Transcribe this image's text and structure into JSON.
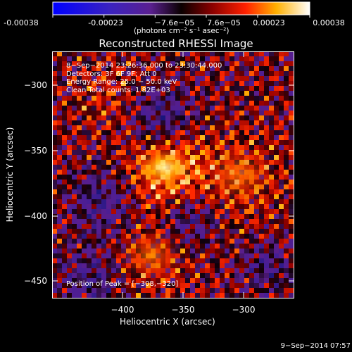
{
  "colorbar": {
    "ticks": [
      "-0.00038",
      "-0.00023",
      "−7.6e−05",
      "7.6e−05",
      "0.00023",
      "0.00038"
    ],
    "units_label": "(photons cm⁻² s⁻¹ asec⁻²)",
    "min": -0.00038,
    "max": 0.00038
  },
  "title": "Reconstructed RHESSI Image",
  "overlay": {
    "line1": "8−Sep−2014 23:26:36.000 to 23:30:44.000",
    "line2": "Detectors: 3F 6F 9F; Att 0",
    "line3": "Energy Range: 25.0 − 50.0 keV",
    "line4": "Clean    Total counts: 1.82E+03"
  },
  "peak_label": "Position of Peak = [−308,−320]",
  "axes": {
    "xlabel": "Heliocentric X (arcsec)",
    "ylabel": "Heliocentric Y (arcsec)",
    "xticks": [
      "−400",
      "−350",
      "−300"
    ],
    "yticks": [
      "−300",
      "−350",
      "−400",
      "−450"
    ],
    "xrange": [
      -445,
      -285
    ],
    "yrange": [
      -470,
      -290
    ]
  },
  "timestamp": "9−Sep−2014 07:57"
}
